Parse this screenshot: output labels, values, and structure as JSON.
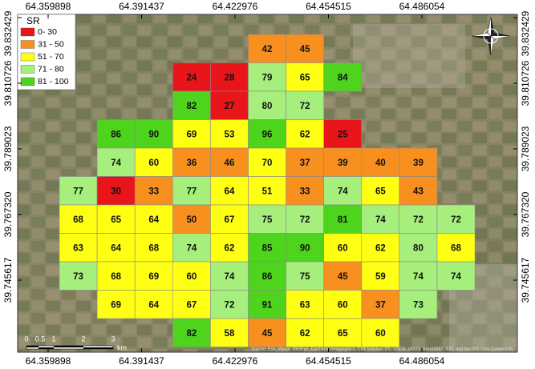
{
  "map": {
    "lon_ticks": [
      64.359898,
      64.391437,
      64.422976,
      64.454515,
      64.486054
    ],
    "lat_ticks": [
      39.832429,
      39.810726,
      39.789023,
      {
        "value": 39.76732,
        "label": "39.767320"
      },
      39.745617
    ],
    "legend": {
      "title": "SR",
      "classes": [
        {
          "label": "0- 30",
          "color": "#e8161b"
        },
        {
          "label": "31 - 50",
          "color": "#f7901e"
        },
        {
          "label": "51 - 70",
          "color": "#ffff14"
        },
        {
          "label": "71 - 80",
          "color": "#a6ef7c"
        },
        {
          "label": "81 - 100",
          "color": "#4fd41e"
        }
      ]
    },
    "grid": [
      [
        null,
        null,
        null,
        null,
        null,
        42,
        45,
        null,
        null,
        null,
        null
      ],
      [
        null,
        null,
        null,
        24,
        28,
        79,
        65,
        84,
        null,
        null,
        null
      ],
      [
        null,
        null,
        null,
        82,
        27,
        80,
        72,
        null,
        null,
        null,
        null
      ],
      [
        null,
        86,
        90,
        69,
        53,
        96,
        62,
        25,
        null,
        null,
        null
      ],
      [
        null,
        74,
        60,
        36,
        46,
        70,
        37,
        39,
        40,
        39,
        null
      ],
      [
        77,
        30,
        33,
        77,
        64,
        51,
        33,
        74,
        65,
        43,
        null
      ],
      [
        68,
        65,
        64,
        50,
        67,
        75,
        72,
        81,
        74,
        72,
        72
      ],
      [
        63,
        64,
        68,
        74,
        62,
        85,
        90,
        60,
        62,
        80,
        68
      ],
      [
        73,
        68,
        69,
        60,
        74,
        86,
        75,
        45,
        59,
        74,
        74
      ],
      [
        null,
        69,
        64,
        67,
        72,
        91,
        63,
        60,
        37,
        73,
        null
      ],
      [
        null,
        null,
        null,
        82,
        58,
        45,
        62,
        65,
        60,
        null,
        null
      ]
    ],
    "scale_bar": {
      "labels": [
        "0",
        "0.5",
        "1",
        "2",
        "3"
      ],
      "unit": "km"
    },
    "attribution": "Source: Esri, Maxar, GeoEye, Earthstar Geographics, CNES/Airbus DS, USDA, USGS, AeroGRID, IGN, and the GIS User Community"
  }
}
